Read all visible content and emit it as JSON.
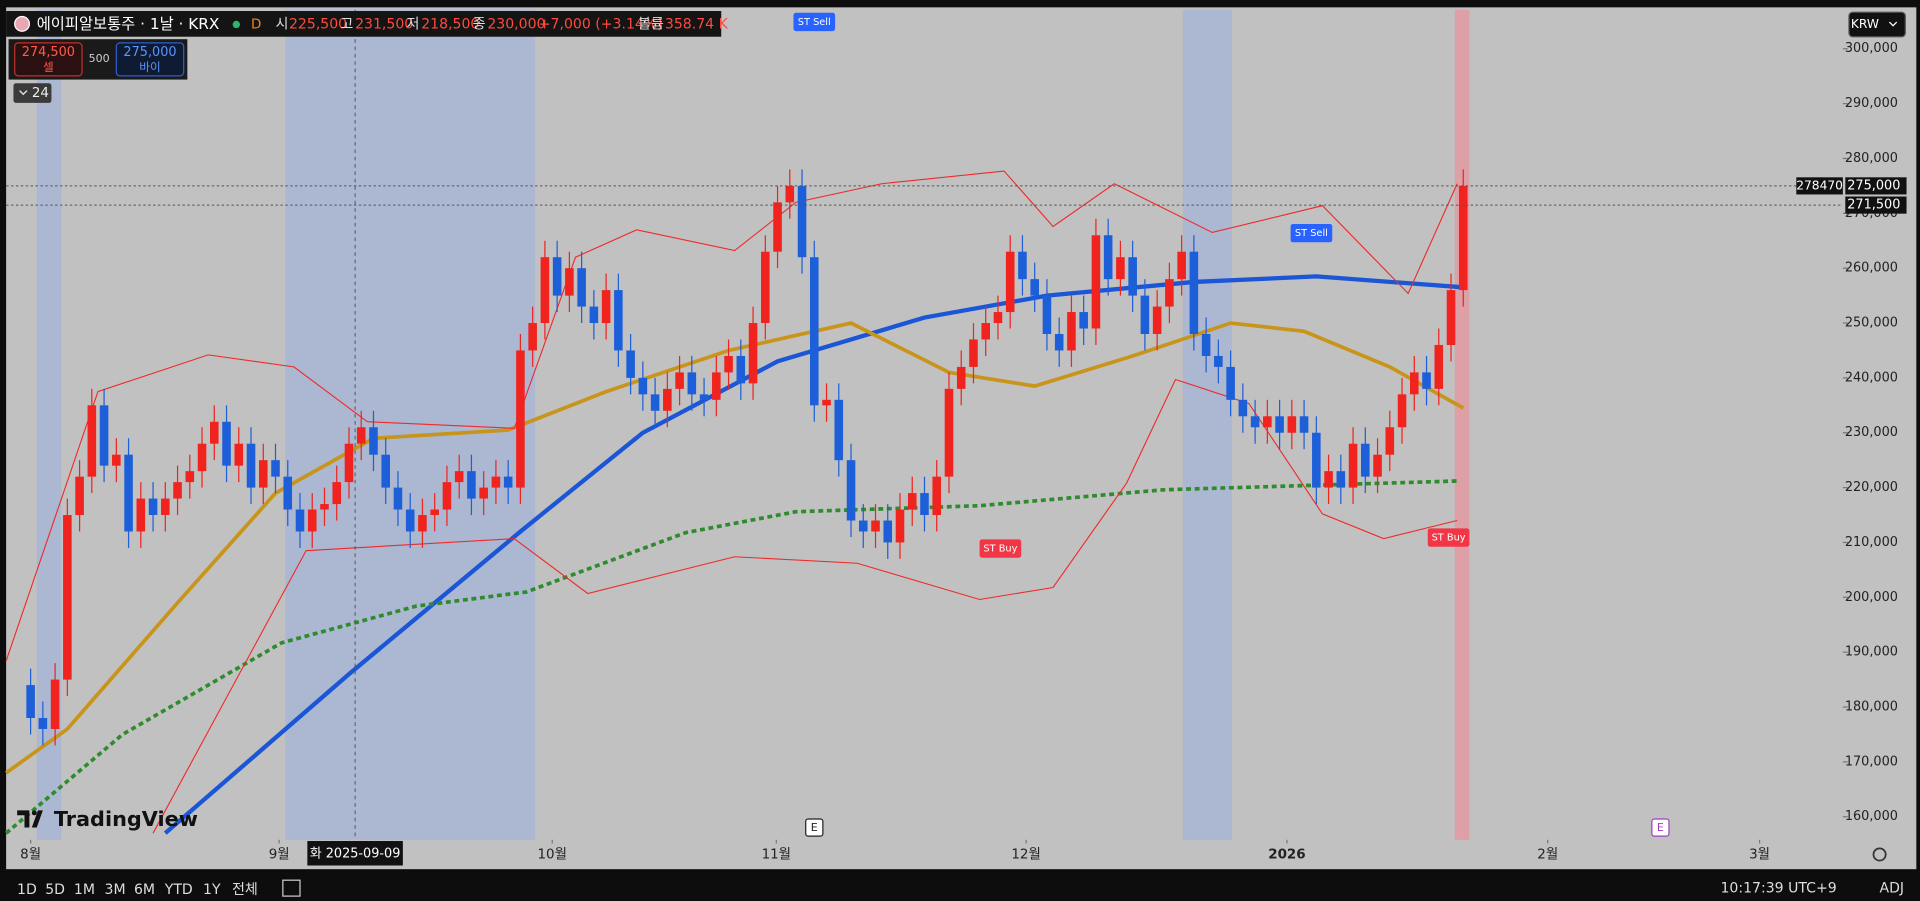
{
  "header": {
    "symbol": "에이피알보통주 · 1날 · KRX",
    "interval": "D",
    "fields": [
      {
        "label": "시",
        "value": "225,500"
      },
      {
        "label": "고",
        "value": "231,500"
      },
      {
        "label": "저",
        "value": "218,500"
      },
      {
        "label": "종",
        "value": "230,000"
      }
    ],
    "change": "+7,000 (+3.14%)",
    "volume_label": "볼륨",
    "volume": "358.74 K"
  },
  "trade": {
    "sell_price": "274,500",
    "sell": "셀",
    "spread": "500",
    "buy_price": "275,000",
    "buy": "바이"
  },
  "indicator_count": "24",
  "currency": "KRW",
  "logo": "TradingView",
  "toolbar": {
    "ranges": [
      "1D",
      "5D",
      "1M",
      "3M",
      "6M",
      "YTD",
      "1Y",
      "전체"
    ],
    "clock": "10:17:39 UTC+9",
    "adj": "ADJ"
  },
  "chart_data": {
    "type": "candlestick",
    "xlim": [
      -2,
      147.5
    ],
    "ylim": [
      155800,
      307100
    ],
    "xticks": [
      {
        "value": 0,
        "label": "8월"
      },
      {
        "value": 20.3,
        "label": "9월"
      },
      {
        "value": 42.6,
        "label": "10월"
      },
      {
        "value": 60.9,
        "label": "11월"
      },
      {
        "value": 81.3,
        "label": "12월"
      },
      {
        "value": 102.6,
        "label": "2026"
      },
      {
        "value": 123.9,
        "label": "2월"
      },
      {
        "value": 141.2,
        "label": "3월"
      }
    ],
    "yticks": [
      {
        "value": 160000,
        "label": "160,000"
      },
      {
        "value": 170000,
        "label": "170,000"
      },
      {
        "value": 180000,
        "label": "180,000"
      },
      {
        "value": 190000,
        "label": "190,000"
      },
      {
        "value": 200000,
        "label": "200,000"
      },
      {
        "value": 210000,
        "label": "210,000"
      },
      {
        "value": 220000,
        "label": "220,000"
      },
      {
        "value": 230000,
        "label": "230,000"
      },
      {
        "value": 240000,
        "label": "240,000"
      },
      {
        "value": 250000,
        "label": "250,000"
      },
      {
        "value": 260000,
        "label": "260,000"
      },
      {
        "value": 270000,
        "label": "270,000"
      },
      {
        "value": 280000,
        "label": "280,000"
      },
      {
        "value": 290000,
        "label": "290,000"
      },
      {
        "value": 300000,
        "label": "300,000"
      }
    ],
    "up_color": "#f0231e",
    "down_color": "#1d5fd8",
    "candles": {
      "open": [
        184000,
        178000,
        176000,
        185000,
        215000,
        222000,
        235000,
        224000,
        226000,
        212000,
        218000,
        215000,
        218000,
        221000,
        223000,
        228000,
        232000,
        224000,
        228000,
        220000,
        225000,
        222000,
        216000,
        212000,
        216000,
        217000,
        221000,
        228000,
        231000,
        226000,
        220000,
        216000,
        212000,
        215000,
        216000,
        221000,
        223000,
        218000,
        220000,
        222000,
        220000,
        245000,
        250000,
        262000,
        255000,
        260000,
        253000,
        250000,
        256000,
        245000,
        240000,
        237000,
        234000,
        238000,
        241000,
        237000,
        236000,
        241000,
        244000,
        239000,
        250000,
        263000,
        272000,
        275000,
        262000,
        235000,
        236000,
        225000,
        214000,
        212000,
        214000,
        210000,
        216000,
        219000,
        215000,
        222000,
        238000,
        242000,
        247000,
        250000,
        252000,
        263000,
        258000,
        255000,
        248000,
        245000,
        252000,
        249000,
        266000,
        258000,
        262000,
        255000,
        248000,
        253000,
        258000,
        263000,
        248000,
        244000,
        242000,
        236000,
        233000,
        231000,
        233000,
        230000,
        233000,
        230000,
        220000,
        223000,
        220000,
        228000,
        222000,
        226000,
        231000,
        237000,
        241000,
        238000,
        246000,
        256000
      ],
      "high": [
        187000,
        181000,
        188000,
        218000,
        225000,
        238000,
        238000,
        229000,
        229000,
        221000,
        221000,
        221000,
        224000,
        226000,
        231000,
        235000,
        235000,
        231000,
        231000,
        228000,
        228000,
        225000,
        219000,
        219000,
        220000,
        224000,
        231000,
        234000,
        234000,
        229000,
        223000,
        219000,
        218000,
        219000,
        224000,
        226000,
        226000,
        223000,
        225000,
        225000,
        248000,
        253000,
        265000,
        265000,
        263000,
        263000,
        256000,
        259000,
        259000,
        248000,
        243000,
        240000,
        241000,
        244000,
        244000,
        240000,
        244000,
        247000,
        247000,
        253000,
        266000,
        275000,
        278000,
        278000,
        265000,
        239000,
        239000,
        228000,
        217000,
        217000,
        217000,
        219000,
        222000,
        222000,
        225000,
        241000,
        245000,
        250000,
        253000,
        255000,
        266000,
        266000,
        261000,
        258000,
        251000,
        255000,
        255000,
        269000,
        269000,
        265000,
        265000,
        258000,
        256000,
        261000,
        266000,
        266000,
        251000,
        247000,
        245000,
        239000,
        236000,
        236000,
        236000,
        236000,
        236000,
        233000,
        226000,
        226000,
        231000,
        231000,
        229000,
        234000,
        240000,
        244000,
        244000,
        249000,
        259000,
        278000
      ],
      "low": [
        175000,
        173000,
        173000,
        182000,
        212000,
        219000,
        221000,
        221000,
        209000,
        209000,
        212000,
        212000,
        215000,
        218000,
        220000,
        225000,
        221000,
        221000,
        217000,
        217000,
        219000,
        213000,
        209000,
        209000,
        213000,
        214000,
        218000,
        225000,
        223000,
        217000,
        213000,
        209000,
        209000,
        212000,
        213000,
        218000,
        215000,
        215000,
        217000,
        217000,
        217000,
        242000,
        247000,
        252000,
        252000,
        250000,
        247000,
        247000,
        242000,
        237000,
        234000,
        231000,
        231000,
        235000,
        234000,
        233000,
        233000,
        238000,
        236000,
        236000,
        247000,
        260000,
        269000,
        259000,
        232000,
        232000,
        222000,
        211000,
        209000,
        209000,
        207000,
        207000,
        213000,
        212000,
        212000,
        219000,
        235000,
        239000,
        244000,
        247000,
        249000,
        255000,
        252000,
        245000,
        242000,
        242000,
        246000,
        246000,
        255000,
        255000,
        252000,
        245000,
        245000,
        250000,
        255000,
        245000,
        241000,
        239000,
        233000,
        230000,
        228000,
        228000,
        227000,
        227000,
        227000,
        217000,
        217000,
        217000,
        217000,
        219000,
        219000,
        223000,
        228000,
        234000,
        235000,
        235000,
        243000,
        253000
      ],
      "close": [
        178000,
        176000,
        185000,
        215000,
        222000,
        235000,
        224000,
        226000,
        212000,
        218000,
        215000,
        218000,
        221000,
        223000,
        228000,
        232000,
        224000,
        228000,
        220000,
        225000,
        222000,
        216000,
        212000,
        216000,
        217000,
        221000,
        228000,
        231000,
        226000,
        220000,
        216000,
        212000,
        215000,
        216000,
        221000,
        223000,
        218000,
        220000,
        222000,
        220000,
        245000,
        250000,
        262000,
        255000,
        260000,
        253000,
        250000,
        256000,
        245000,
        240000,
        237000,
        234000,
        238000,
        241000,
        237000,
        236000,
        241000,
        244000,
        239000,
        250000,
        263000,
        272000,
        275000,
        262000,
        235000,
        236000,
        225000,
        214000,
        212000,
        214000,
        210000,
        216000,
        219000,
        215000,
        222000,
        238000,
        242000,
        247000,
        250000,
        252000,
        263000,
        258000,
        255000,
        248000,
        245000,
        252000,
        249000,
        266000,
        258000,
        262000,
        255000,
        248000,
        253000,
        258000,
        263000,
        248000,
        244000,
        242000,
        236000,
        233000,
        231000,
        233000,
        230000,
        233000,
        230000,
        220000,
        223000,
        220000,
        228000,
        222000,
        226000,
        231000,
        237000,
        241000,
        238000,
        246000,
        256000,
        275000
      ]
    },
    "lines": [
      {
        "color": "#1a56d6",
        "width": 3.5,
        "dash": "none",
        "x": [
          11,
          26,
          40,
          50,
          61,
          73,
          83,
          95,
          105,
          117
        ],
        "values": [
          157000,
          186000,
          212000,
          230000,
          243000,
          251000,
          255000,
          257500,
          258500,
          256500
        ]
      },
      {
        "color": "#c89419",
        "width": 3,
        "dash": "none",
        "x": [
          -2,
          3,
          12,
          20,
          28,
          39,
          47,
          57,
          67,
          75,
          82,
          90,
          98,
          104,
          111,
          117
        ],
        "values": [
          168000,
          176000,
          199000,
          219000,
          229000,
          230500,
          237500,
          245000,
          250000,
          241000,
          238500,
          244000,
          250000,
          248500,
          242000,
          234500
        ]
      },
      {
        "color": "#2e8b2e",
        "width": 3,
        "dash": "4 3",
        "x": [
          -2,
          7.5,
          20.5,
          31.5,
          40.5,
          53.5,
          62.5,
          77.5,
          92.5,
          116.5
        ],
        "values": [
          157000,
          175000,
          191700,
          198400,
          201000,
          211800,
          215600,
          216700,
          219600,
          221200
        ]
      },
      {
        "color": "#ee2a2a",
        "width": 0.9,
        "dash": "none",
        "x": [
          -2,
          5.5,
          14.5,
          21.5,
          27.5,
          39.5,
          44.5,
          49.5,
          57.5,
          62.5,
          69.5,
          79.5,
          83.5,
          88.5,
          96.5,
          105.5,
          112.5,
          116.5
        ],
        "values": [
          188400,
          237500,
          244200,
          242000,
          232000,
          230800,
          262000,
          267000,
          263200,
          272000,
          275400,
          277700,
          267600,
          275400,
          266500,
          271400,
          255400,
          275400
        ]
      },
      {
        "color": "#ee2a2a",
        "width": 0.9,
        "dash": "none",
        "x": [
          10,
          22.5,
          39.5,
          45.5,
          57.5,
          67.5,
          77.5,
          83.5,
          89.5,
          93.5,
          99.5,
          105.5,
          110.5,
          116.5
        ],
        "values": [
          157000,
          208500,
          210700,
          200700,
          207400,
          206200,
          199600,
          201800,
          220800,
          239700,
          235300,
          215200,
          210700,
          214000
        ]
      }
    ],
    "bands": [
      {
        "from": 0.5,
        "to": 2.5,
        "color": "#9fb0dc"
      },
      {
        "from": 20.8,
        "to": 41.2,
        "color": "#9fb0dc"
      },
      {
        "from": 94.1,
        "to": 98.1,
        "color": "#9fb0dc"
      },
      {
        "from": 116.3,
        "to": 117.5,
        "color": "#f08a94"
      }
    ],
    "signals": [
      {
        "x": 64,
        "y": 305000,
        "label": "ST Sell",
        "color": "#2962ff"
      },
      {
        "x": 104.6,
        "y": 266500,
        "label": "ST Sell",
        "color": "#2962ff"
      },
      {
        "x": 79.2,
        "y": 209000,
        "label": "ST Buy",
        "color": "#f23645"
      },
      {
        "x": 115.8,
        "y": 211000,
        "label": "ST Buy",
        "color": "#f23645"
      }
    ],
    "price_lines": [
      {
        "value": 275000,
        "label": "275,000"
      },
      {
        "value": 271500,
        "label": "271,500"
      }
    ],
    "price_marker": "278470",
    "events": [
      {
        "x": 64,
        "label": "E"
      },
      {
        "x": 133.1,
        "label": "E"
      }
    ],
    "crosshair": {
      "x": 26.5,
      "label": "화 2025-09-09"
    }
  }
}
